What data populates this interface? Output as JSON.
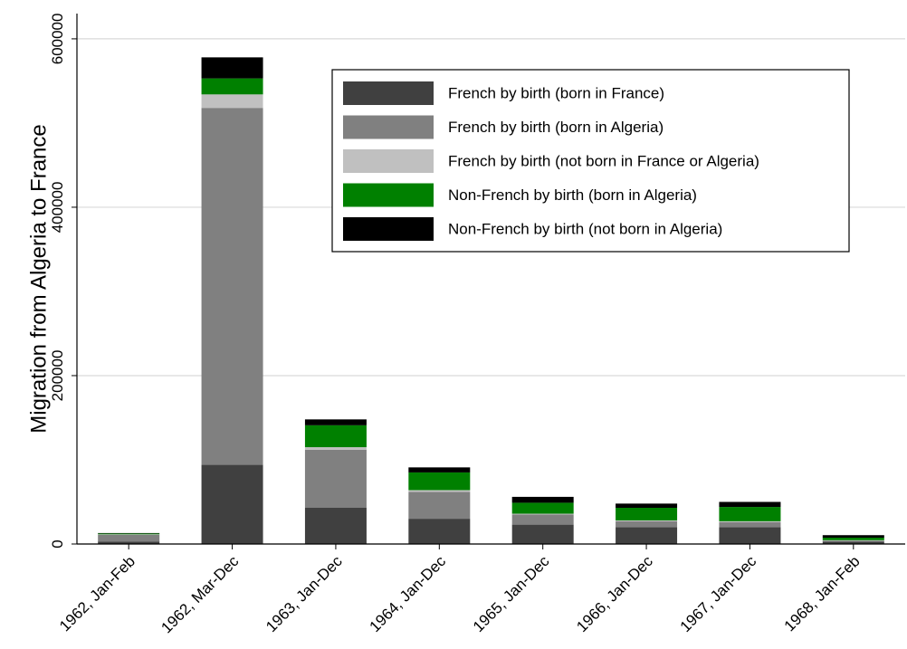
{
  "chart_data": {
    "type": "stacked_bar",
    "y_label": "Migration from Algeria to France",
    "categories": [
      "1962, Jan-Feb",
      "1962, Mar-Dec",
      "1963, Jan-Dec",
      "1964, Jan-Dec",
      "1965, Jan-Dec",
      "1966, Jan-Dec",
      "1967, Jan-Dec",
      "1968, Jan-Feb"
    ],
    "series": [
      {
        "name": "French by birth (born in France)",
        "color": "#404040",
        "values": [
          3000,
          94000,
          43000,
          30000,
          23000,
          20000,
          20000,
          3000
        ]
      },
      {
        "name": "French by birth (born in Algeria)",
        "color": "#808080",
        "values": [
          8000,
          424000,
          69000,
          32000,
          12000,
          7000,
          6000,
          1000
        ]
      },
      {
        "name": "French by birth (not born in France or Algeria)",
        "color": "#c0c0c0",
        "values": [
          500,
          16000,
          3000,
          2000,
          1000,
          1000,
          1000,
          500
        ]
      },
      {
        "name": "Non-French by birth (born in Algeria)",
        "color": "#008000",
        "values": [
          1000,
          19000,
          26000,
          21000,
          13000,
          15000,
          17000,
          3000
        ]
      },
      {
        "name": "Non-French by birth (not born in Algeria)",
        "color": "#000000",
        "values": [
          500,
          25000,
          7000,
          6000,
          7000,
          5000,
          6000,
          3000
        ]
      }
    ],
    "ylim": [
      0,
      630000
    ],
    "yticks": [
      0,
      200000,
      400000,
      600000
    ],
    "grid": true,
    "legend": "top-right"
  }
}
